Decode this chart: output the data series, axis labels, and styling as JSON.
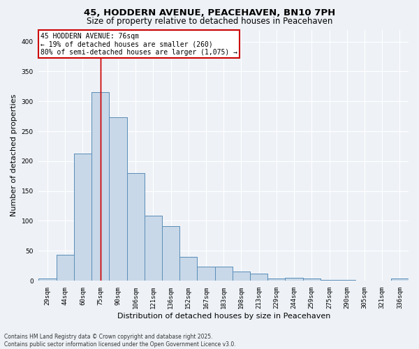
{
  "title_line1": "45, HODDERN AVENUE, PEACEHAVEN, BN10 7PH",
  "title_line2": "Size of property relative to detached houses in Peacehaven",
  "xlabel": "Distribution of detached houses by size in Peacehaven",
  "ylabel": "Number of detached properties",
  "categories": [
    "29sqm",
    "44sqm",
    "60sqm",
    "75sqm",
    "90sqm",
    "106sqm",
    "121sqm",
    "136sqm",
    "152sqm",
    "167sqm",
    "183sqm",
    "198sqm",
    "213sqm",
    "229sqm",
    "244sqm",
    "259sqm",
    "275sqm",
    "290sqm",
    "305sqm",
    "321sqm",
    "336sqm"
  ],
  "values": [
    4,
    43,
    213,
    315,
    273,
    180,
    109,
    91,
    40,
    23,
    24,
    15,
    12,
    3,
    5,
    4,
    1,
    1,
    0,
    0,
    3
  ],
  "bar_color": "#c8d8e8",
  "bar_edge_color": "#5b8db8",
  "vline_x": 3.0,
  "vline_color": "#cc0000",
  "annotation_text": "45 HODDERN AVENUE: 76sqm\n← 19% of detached houses are smaller (260)\n80% of semi-detached houses are larger (1,075) →",
  "annotation_box_color": "#ffffff",
  "annotation_box_edge": "#cc0000",
  "background_color": "#eef2f7",
  "grid_color": "#ffffff",
  "footer_line1": "Contains HM Land Registry data © Crown copyright and database right 2025.",
  "footer_line2": "Contains public sector information licensed under the Open Government Licence v3.0.",
  "ylim": [
    0,
    420
  ],
  "yticks": [
    0,
    50,
    100,
    150,
    200,
    250,
    300,
    350,
    400
  ],
  "title1_fontsize": 9.5,
  "title2_fontsize": 8.5,
  "xlabel_fontsize": 8,
  "ylabel_fontsize": 8,
  "tick_fontsize": 6.5,
  "footer_fontsize": 5.5,
  "ann_fontsize": 7
}
